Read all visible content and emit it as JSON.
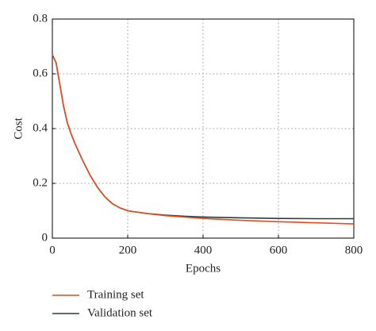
{
  "chart_data": {
    "type": "line",
    "xlabel": "Epochs",
    "ylabel": "Cost",
    "x": [
      0,
      10,
      20,
      30,
      40,
      50,
      60,
      80,
      100,
      120,
      140,
      160,
      180,
      200,
      250,
      300,
      350,
      400,
      500,
      600,
      700,
      800
    ],
    "series": [
      {
        "name": "Training set",
        "color": "#e8491d",
        "values": [
          0.67,
          0.64,
          0.56,
          0.48,
          0.42,
          0.38,
          0.345,
          0.285,
          0.23,
          0.185,
          0.15,
          0.125,
          0.11,
          0.1,
          0.09,
          0.082,
          0.077,
          0.072,
          0.065,
          0.06,
          0.056,
          0.052
        ]
      },
      {
        "name": "Validation set",
        "color": "#2b3b3b",
        "values": [
          0.67,
          0.64,
          0.56,
          0.48,
          0.42,
          0.38,
          0.345,
          0.285,
          0.23,
          0.185,
          0.15,
          0.125,
          0.11,
          0.1,
          0.09,
          0.084,
          0.08,
          0.077,
          0.074,
          0.072,
          0.071,
          0.071
        ]
      }
    ],
    "xlim": [
      0,
      800
    ],
    "xticks": [
      0,
      200,
      400,
      600,
      800
    ],
    "ylim": [
      0,
      0.8
    ],
    "yticks": [
      0,
      0.2,
      0.4,
      0.6,
      0.8
    ],
    "grid": true,
    "legend": "below"
  }
}
